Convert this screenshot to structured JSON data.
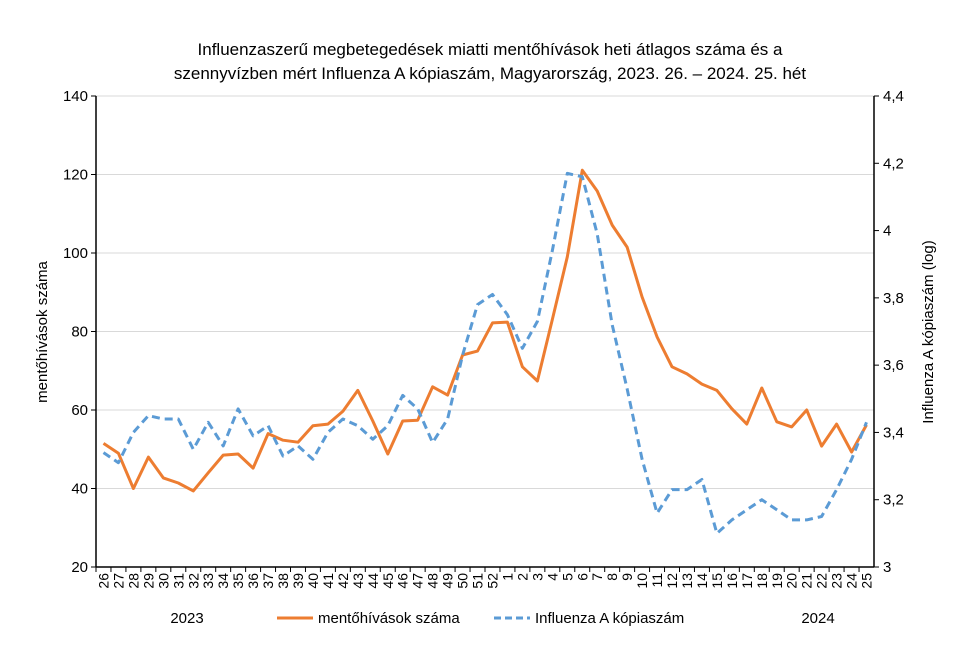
{
  "chart_data": {
    "type": "line",
    "title": [
      "Influenzaszerű megbetegedések miatti mentőhívások heti átlagos száma és a",
      "szennyvízben mért Influenza A kópiaszám, Magyarország, 2023. 26. – 2024. 25. hét"
    ],
    "ylabel": "mentőhívások száma",
    "y2label": "Influenza A kópiaszám (log)",
    "ylim": [
      20,
      140
    ],
    "yticks": [
      "20",
      "40",
      "60",
      "80",
      "100",
      "120",
      "140"
    ],
    "y2lim": [
      3,
      4.4
    ],
    "y2ticks": [
      "3",
      "3,2",
      "3,4",
      "3,6",
      "3,8",
      "4",
      "4,2",
      "4,4"
    ],
    "grid": true,
    "legend_position": "bottom",
    "year_labels": [
      "2023",
      "2024"
    ],
    "categories": [
      "26",
      "27",
      "28",
      "29",
      "30",
      "31",
      "32",
      "33",
      "34",
      "35",
      "36",
      "37",
      "38",
      "39",
      "40",
      "41",
      "42",
      "43",
      "44",
      "45",
      "46",
      "47",
      "48",
      "49",
      "50",
      "51",
      "52",
      "1",
      "2",
      "3",
      "4",
      "5",
      "6",
      "7",
      "8",
      "9",
      "10",
      "11",
      "12",
      "13",
      "14",
      "15",
      "16",
      "17",
      "18",
      "19",
      "20",
      "21",
      "22",
      "23",
      "24",
      "25"
    ],
    "series": [
      {
        "name": "mentőhívások száma",
        "axis": "left",
        "color": "#ED7D31",
        "style": "solid",
        "values": [
          51.5,
          49,
          40,
          48,
          42.7,
          41.4,
          39.4,
          44,
          48.5,
          48.8,
          45.2,
          54,
          52.3,
          51.8,
          56,
          56.4,
          59.7,
          65,
          57.2,
          48.8,
          57.2,
          57.4,
          65.9,
          63.8,
          74,
          75,
          82.2,
          82.4,
          71,
          67.4,
          83,
          99,
          121.1,
          115.8,
          107.1,
          101.5,
          88.8,
          78.6,
          71,
          69.2,
          66.6,
          65,
          60.3,
          56.4,
          65.6,
          57,
          55.7,
          60,
          50.8,
          56.4,
          49.3,
          56.2
        ]
      },
      {
        "name": "Influenza A kópiaszám",
        "axis": "right",
        "color": "#5B9BD5",
        "style": "dashed",
        "values": [
          3.34,
          3.31,
          3.4,
          3.45,
          3.44,
          3.44,
          3.35,
          3.43,
          3.36,
          3.47,
          3.39,
          3.42,
          3.33,
          3.36,
          3.32,
          3.4,
          3.44,
          3.42,
          3.38,
          3.42,
          3.51,
          3.47,
          3.37,
          3.44,
          3.63,
          3.78,
          3.81,
          3.75,
          3.65,
          3.73,
          3.94,
          4.17,
          4.16,
          3.99,
          3.72,
          3.53,
          3.32,
          3.16,
          3.23,
          3.23,
          3.26,
          3.1,
          3.14,
          3.17,
          3.2,
          3.17,
          3.14,
          3.14,
          3.15,
          3.23,
          3.32,
          3.43
        ]
      }
    ]
  }
}
